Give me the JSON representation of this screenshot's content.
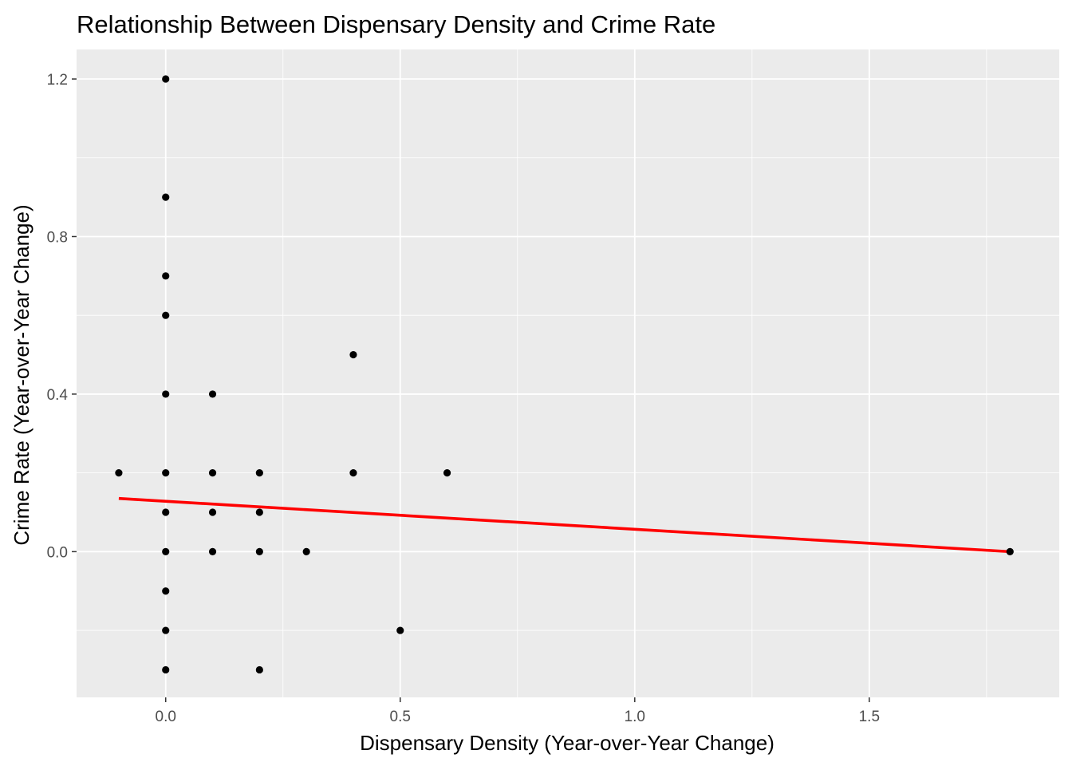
{
  "chart_data": {
    "type": "scatter",
    "title": "Relationship Between Dispensary Density and Crime Rate",
    "xlabel": "Dispensary Density (Year-over-Year Change)",
    "ylabel": "Crime Rate (Year-over-Year Change)",
    "xlim": [
      -0.19,
      1.905
    ],
    "ylim": [
      -0.37,
      1.275
    ],
    "x_ticks": [
      0.0,
      0.5,
      1.0,
      1.5
    ],
    "x_tick_labels": [
      "0.0",
      "0.5",
      "1.0",
      "1.5"
    ],
    "y_ticks": [
      0.0,
      0.4,
      0.8,
      1.2
    ],
    "y_tick_labels": [
      "0.0",
      "0.4",
      "0.8",
      "1.2"
    ],
    "grid": true,
    "legend": "none",
    "colors": {
      "panel_background": "#ebebeb",
      "grid_major": "#ffffff",
      "grid_minor": "#f5f5f5",
      "points": "#000000",
      "fit_line": "#ff0000"
    },
    "points": [
      {
        "x": 0.0,
        "y": 1.2
      },
      {
        "x": 0.0,
        "y": 0.9
      },
      {
        "x": 0.0,
        "y": 0.7
      },
      {
        "x": 0.0,
        "y": 0.6
      },
      {
        "x": 0.0,
        "y": 0.4
      },
      {
        "x": 0.0,
        "y": 0.2
      },
      {
        "x": 0.0,
        "y": 0.1
      },
      {
        "x": 0.0,
        "y": 0.0
      },
      {
        "x": 0.0,
        "y": -0.1
      },
      {
        "x": 0.0,
        "y": -0.2
      },
      {
        "x": 0.0,
        "y": -0.3
      },
      {
        "x": -0.1,
        "y": 0.2
      },
      {
        "x": 0.1,
        "y": 0.4
      },
      {
        "x": 0.1,
        "y": 0.2
      },
      {
        "x": 0.1,
        "y": 0.1
      },
      {
        "x": 0.1,
        "y": 0.0
      },
      {
        "x": 0.2,
        "y": 0.2
      },
      {
        "x": 0.2,
        "y": 0.1
      },
      {
        "x": 0.2,
        "y": 0.0
      },
      {
        "x": 0.2,
        "y": -0.3
      },
      {
        "x": 0.3,
        "y": 0.0
      },
      {
        "x": 0.4,
        "y": 0.5
      },
      {
        "x": 0.4,
        "y": 0.2
      },
      {
        "x": 0.5,
        "y": -0.2
      },
      {
        "x": 0.6,
        "y": 0.2
      },
      {
        "x": 1.8,
        "y": 0.0
      }
    ],
    "fit_line": {
      "x": [
        -0.1,
        1.8
      ],
      "y": [
        0.135,
        0.0
      ]
    }
  }
}
